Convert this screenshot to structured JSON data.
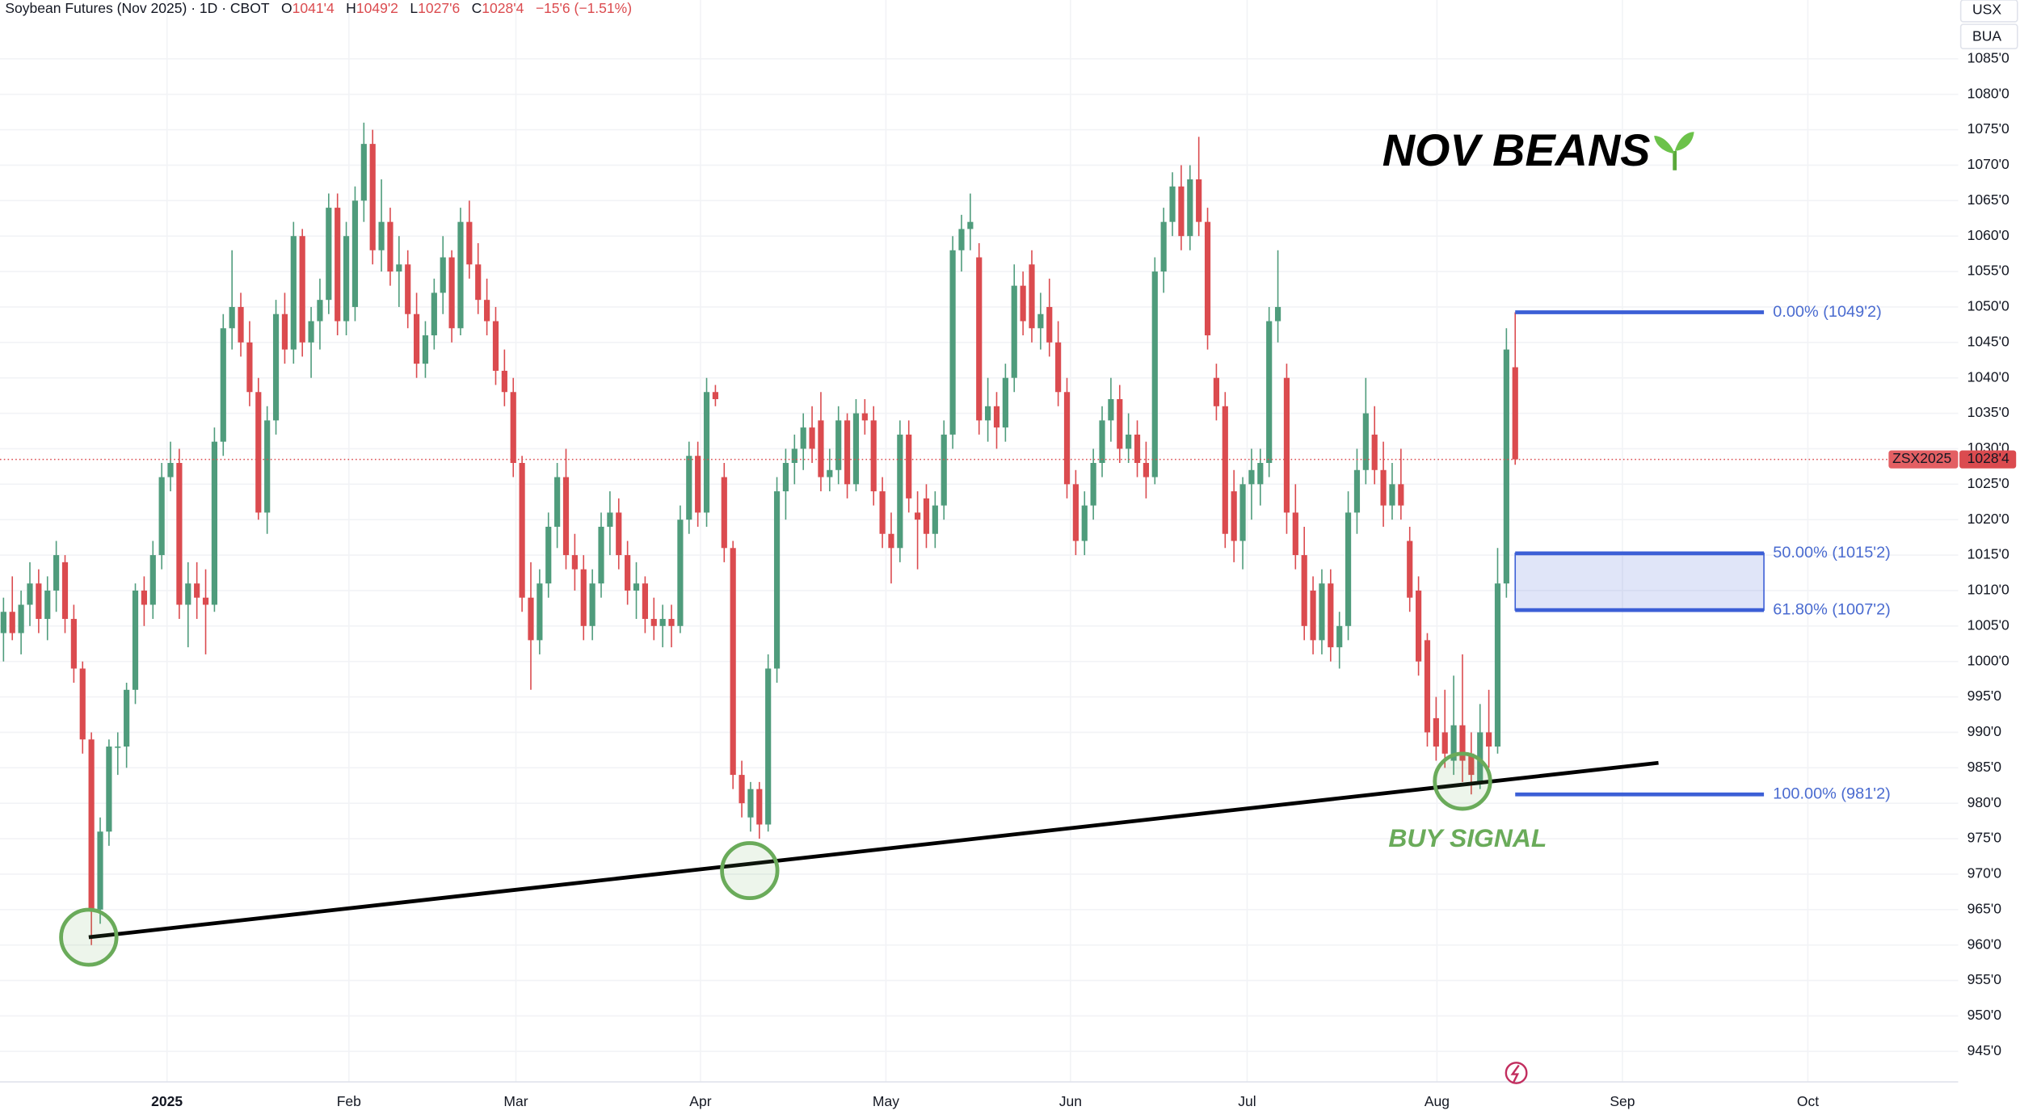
{
  "header": {
    "symbol": "Soybean Futures (Nov 2025) · 1D · CBOT",
    "ohlc": [
      {
        "key": "O",
        "value": "1041'4"
      },
      {
        "key": "H",
        "value": "1049'2"
      },
      {
        "key": "L",
        "value": "1027'6"
      },
      {
        "key": "C",
        "value": "1028'4"
      }
    ],
    "change": "−15'6 (−1.51%)"
  },
  "top_right": [
    "USX",
    "BUA"
  ],
  "chart_data": {
    "type": "candlestick",
    "title": "NOV BEANS",
    "annotation": "BUY SIGNAL",
    "up_color": "#4f9c7c",
    "down_color": "#db4b4f",
    "grid": true,
    "ohlc": [
      [
        1004,
        1009,
        1000,
        1007
      ],
      [
        1007,
        1012,
        1003,
        1004
      ],
      [
        1004,
        1010,
        1001,
        1008
      ],
      [
        1008,
        1014,
        1005,
        1011
      ],
      [
        1011,
        1013,
        1004,
        1006
      ],
      [
        1006,
        1012,
        1003,
        1010
      ],
      [
        1010,
        1017,
        1007,
        1015
      ],
      [
        1014,
        1015,
        1004,
        1006
      ],
      [
        1006,
        1008,
        997,
        999
      ],
      [
        999,
        1000,
        987,
        989
      ],
      [
        989,
        990,
        960,
        965
      ],
      [
        965,
        978,
        963,
        976
      ],
      [
        976,
        989,
        974,
        988
      ],
      [
        988,
        990,
        984,
        988
      ],
      [
        988,
        997,
        985,
        996
      ],
      [
        996,
        1011,
        994,
        1010
      ],
      [
        1010,
        1012,
        1005,
        1008
      ],
      [
        1008,
        1017,
        1006,
        1015
      ],
      [
        1015,
        1028,
        1013,
        1026
      ],
      [
        1026,
        1031,
        1024,
        1028
      ],
      [
        1028,
        1030,
        1006,
        1008
      ],
      [
        1008,
        1014,
        1002,
        1011
      ],
      [
        1011,
        1014,
        1006,
        1009
      ],
      [
        1009,
        1013,
        1001,
        1008
      ],
      [
        1008,
        1033,
        1007,
        1031
      ],
      [
        1031,
        1049,
        1029,
        1047
      ],
      [
        1047,
        1058,
        1044,
        1050
      ],
      [
        1050,
        1052,
        1043,
        1045
      ],
      [
        1045,
        1048,
        1036,
        1038
      ],
      [
        1038,
        1040,
        1020,
        1021
      ],
      [
        1021,
        1036,
        1018,
        1034
      ],
      [
        1034,
        1051,
        1032,
        1049
      ],
      [
        1049,
        1052,
        1042,
        1044
      ],
      [
        1044,
        1062,
        1042,
        1060
      ],
      [
        1060,
        1061,
        1043,
        1045
      ],
      [
        1045,
        1050,
        1040,
        1048
      ],
      [
        1048,
        1054,
        1044,
        1051
      ],
      [
        1051,
        1066,
        1049,
        1064
      ],
      [
        1064,
        1066,
        1046,
        1048
      ],
      [
        1048,
        1062,
        1046,
        1060
      ],
      [
        1050,
        1067,
        1048,
        1065
      ],
      [
        1065,
        1076,
        1062,
        1073
      ],
      [
        1073,
        1075,
        1056,
        1058
      ],
      [
        1058,
        1068,
        1055,
        1062
      ],
      [
        1062,
        1064,
        1053,
        1055
      ],
      [
        1055,
        1060,
        1050,
        1056
      ],
      [
        1056,
        1058,
        1047,
        1049
      ],
      [
        1049,
        1052,
        1040,
        1042
      ],
      [
        1042,
        1048,
        1040,
        1046
      ],
      [
        1046,
        1054,
        1044,
        1052
      ],
      [
        1052,
        1060,
        1049,
        1057
      ],
      [
        1057,
        1058,
        1045,
        1047
      ],
      [
        1047,
        1064,
        1046,
        1062
      ],
      [
        1062,
        1065,
        1054,
        1056
      ],
      [
        1056,
        1059,
        1049,
        1051
      ],
      [
        1051,
        1054,
        1046,
        1048
      ],
      [
        1048,
        1050,
        1039,
        1041
      ],
      [
        1041,
        1044,
        1036,
        1038
      ],
      [
        1038,
        1040,
        1026,
        1028
      ],
      [
        1028,
        1029,
        1007,
        1009
      ],
      [
        1009,
        1014,
        996,
        1003
      ],
      [
        1003,
        1013,
        1001,
        1011
      ],
      [
        1011,
        1021,
        1009,
        1019
      ],
      [
        1019,
        1028,
        1016,
        1026
      ],
      [
        1026,
        1030,
        1013,
        1015
      ],
      [
        1015,
        1018,
        1010,
        1013
      ],
      [
        1013,
        1015,
        1003,
        1005
      ],
      [
        1005,
        1013,
        1003,
        1011
      ],
      [
        1011,
        1021,
        1009,
        1019
      ],
      [
        1019,
        1024,
        1015,
        1021
      ],
      [
        1021,
        1023,
        1013,
        1015
      ],
      [
        1015,
        1017,
        1008,
        1010
      ],
      [
        1010,
        1014,
        1006,
        1011
      ],
      [
        1011,
        1012,
        1004,
        1006
      ],
      [
        1006,
        1009,
        1003,
        1005
      ],
      [
        1005,
        1008,
        1002,
        1006
      ],
      [
        1006,
        1008,
        1002,
        1005
      ],
      [
        1005,
        1022,
        1004,
        1020
      ],
      [
        1020,
        1031,
        1018,
        1029
      ],
      [
        1029,
        1031,
        1019,
        1021
      ],
      [
        1021,
        1040,
        1019,
        1038
      ],
      [
        1038,
        1039,
        1036,
        1037
      ],
      [
        1026,
        1028,
        1014,
        1016
      ],
      [
        1016,
        1017,
        982,
        984
      ],
      [
        984,
        986,
        978,
        980
      ],
      [
        978,
        983,
        976,
        982
      ],
      [
        982,
        983,
        975,
        977
      ],
      [
        977,
        1001,
        976,
        999
      ],
      [
        999,
        1026,
        997,
        1024
      ],
      [
        1024,
        1030,
        1020,
        1028
      ],
      [
        1028,
        1032,
        1025,
        1030
      ],
      [
        1030,
        1035,
        1027,
        1033
      ],
      [
        1033,
        1036,
        1028,
        1030
      ],
      [
        1034,
        1038,
        1024,
        1026
      ],
      [
        1026,
        1030,
        1024,
        1027
      ],
      [
        1027,
        1036,
        1025,
        1034
      ],
      [
        1034,
        1035,
        1023,
        1025
      ],
      [
        1025,
        1037,
        1024,
        1035
      ],
      [
        1035,
        1037,
        1032,
        1034
      ],
      [
        1034,
        1036,
        1022,
        1024
      ],
      [
        1024,
        1026,
        1016,
        1018
      ],
      [
        1018,
        1021,
        1011,
        1016
      ],
      [
        1016,
        1034,
        1014,
        1032
      ],
      [
        1032,
        1034,
        1021,
        1023
      ],
      [
        1021,
        1024,
        1013,
        1020
      ],
      [
        1023,
        1025,
        1016,
        1018
      ],
      [
        1018,
        1024,
        1016,
        1022
      ],
      [
        1022,
        1034,
        1020,
        1032
      ],
      [
        1032,
        1060,
        1030,
        1058
      ],
      [
        1058,
        1063,
        1055,
        1061
      ],
      [
        1061,
        1066,
        1058,
        1062
      ],
      [
        1057,
        1059,
        1032,
        1034
      ],
      [
        1034,
        1040,
        1031,
        1036
      ],
      [
        1036,
        1038,
        1030,
        1033
      ],
      [
        1033,
        1042,
        1031,
        1040
      ],
      [
        1040,
        1056,
        1038,
        1053
      ],
      [
        1053,
        1055,
        1046,
        1048
      ],
      [
        1056,
        1058,
        1045,
        1047
      ],
      [
        1047,
        1052,
        1044,
        1049
      ],
      [
        1050,
        1054,
        1043,
        1045
      ],
      [
        1045,
        1048,
        1036,
        1038
      ],
      [
        1038,
        1040,
        1023,
        1025
      ],
      [
        1025,
        1027,
        1015,
        1017
      ],
      [
        1017,
        1024,
        1015,
        1022
      ],
      [
        1022,
        1030,
        1020,
        1028
      ],
      [
        1028,
        1036,
        1026,
        1034
      ],
      [
        1034,
        1040,
        1031,
        1037
      ],
      [
        1037,
        1039,
        1028,
        1030
      ],
      [
        1030,
        1035,
        1028,
        1032
      ],
      [
        1032,
        1034,
        1026,
        1028
      ],
      [
        1028,
        1031,
        1023,
        1026
      ],
      [
        1026,
        1057,
        1025,
        1055
      ],
      [
        1055,
        1064,
        1052,
        1062
      ],
      [
        1062,
        1069,
        1060,
        1067
      ],
      [
        1067,
        1070,
        1058,
        1060
      ],
      [
        1060,
        1070,
        1058,
        1068
      ],
      [
        1068,
        1074,
        1060,
        1062
      ],
      [
        1062,
        1064,
        1044,
        1046
      ],
      [
        1040,
        1042,
        1034,
        1036
      ],
      [
        1036,
        1038,
        1016,
        1018
      ],
      [
        1024,
        1027,
        1014,
        1017
      ],
      [
        1017,
        1026,
        1013,
        1025
      ],
      [
        1025,
        1030,
        1020,
        1027
      ],
      [
        1025,
        1030,
        1022,
        1028
      ],
      [
        1028,
        1050,
        1026,
        1048
      ],
      [
        1048,
        1058,
        1045,
        1050
      ],
      [
        1040,
        1042,
        1018,
        1021
      ],
      [
        1021,
        1025,
        1013,
        1015
      ],
      [
        1015,
        1019,
        1003,
        1005
      ],
      [
        1010,
        1012,
        1001,
        1003
      ],
      [
        1003,
        1013,
        1001,
        1011
      ],
      [
        1011,
        1013,
        1000,
        1002
      ],
      [
        1002,
        1007,
        999,
        1005
      ],
      [
        1005,
        1024,
        1003,
        1021
      ],
      [
        1021,
        1030,
        1018,
        1027
      ],
      [
        1027,
        1040,
        1025,
        1035
      ],
      [
        1032,
        1036,
        1025,
        1027
      ],
      [
        1027,
        1031,
        1019,
        1022
      ],
      [
        1022,
        1028,
        1020,
        1025
      ],
      [
        1025,
        1030,
        1020,
        1022
      ],
      [
        1017,
        1019,
        1007,
        1009
      ],
      [
        1010,
        1012,
        998,
        1000
      ],
      [
        1003,
        1004,
        988,
        990
      ],
      [
        992,
        995,
        986,
        988
      ],
      [
        990,
        996,
        985,
        987
      ],
      [
        986,
        998,
        984,
        991
      ],
      [
        991,
        1001,
        983,
        986
      ],
      [
        987,
        990,
        981.25,
        984
      ],
      [
        983,
        994,
        982,
        990
      ],
      [
        990,
        996,
        985,
        988
      ],
      [
        988,
        1016,
        987,
        1011
      ],
      [
        1011,
        1047,
        1009,
        1044
      ],
      [
        1041.5,
        1049.25,
        1027.75,
        1028.5
      ]
    ],
    "xlim": [
      -0.4,
      222.4
    ],
    "xticks": [
      {
        "value": 18.6,
        "label": "2025"
      },
      {
        "value": 39.3,
        "label": "Feb"
      },
      {
        "value": 58.3,
        "label": "Mar"
      },
      {
        "value": 79.3,
        "label": "Apr"
      },
      {
        "value": 100.4,
        "label": "May"
      },
      {
        "value": 121.4,
        "label": "Jun"
      },
      {
        "value": 141.5,
        "label": "Jul"
      },
      {
        "value": 163.1,
        "label": "Aug"
      },
      {
        "value": 184.2,
        "label": "Sep"
      },
      {
        "value": 205.3,
        "label": "Oct"
      }
    ],
    "ylim": [
      940.7,
      1093.3
    ],
    "yticks": [
      {
        "value": 945,
        "label": "945'0"
      },
      {
        "value": 950,
        "label": "950'0"
      },
      {
        "value": 955,
        "label": "955'0"
      },
      {
        "value": 960,
        "label": "960'0"
      },
      {
        "value": 965,
        "label": "965'0"
      },
      {
        "value": 970,
        "label": "970'0"
      },
      {
        "value": 975,
        "label": "975'0"
      },
      {
        "value": 980,
        "label": "980'0"
      },
      {
        "value": 985,
        "label": "985'0"
      },
      {
        "value": 990,
        "label": "990'0"
      },
      {
        "value": 995,
        "label": "995'0"
      },
      {
        "value": 1000,
        "label": "1000'0"
      },
      {
        "value": 1005,
        "label": "1005'0"
      },
      {
        "value": 1010,
        "label": "1010'0"
      },
      {
        "value": 1015,
        "label": "1015'0"
      },
      {
        "value": 1020,
        "label": "1020'0"
      },
      {
        "value": 1025,
        "label": "1025'0"
      },
      {
        "value": 1030,
        "label": "1030'0"
      },
      {
        "value": 1035,
        "label": "1035'0"
      },
      {
        "value": 1040,
        "label": "1040'0"
      },
      {
        "value": 1045,
        "label": "1045'0"
      },
      {
        "value": 1050,
        "label": "1050'0"
      },
      {
        "value": 1055,
        "label": "1055'0"
      },
      {
        "value": 1060,
        "label": "1060'0"
      },
      {
        "value": 1065,
        "label": "1065'0"
      },
      {
        "value": 1070,
        "label": "1070'0"
      },
      {
        "value": 1075,
        "label": "1075'0"
      },
      {
        "value": 1080,
        "label": "1080'0"
      },
      {
        "value": 1085,
        "label": "1085'0"
      }
    ],
    "last_price": {
      "symbol": "ZSX2025",
      "label": "1028'4",
      "value": 1028.5
    },
    "fib_levels": [
      {
        "label": "0.00% (1049'2)",
        "value": 1049.25
      },
      {
        "label": "50.00% (1015'2)",
        "value": 1015.25
      },
      {
        "label": "61.80% (1007'2)",
        "value": 1007.25
      },
      {
        "label": "100.00% (981'2)",
        "value": 981.25
      }
    ],
    "trendline": {
      "x": [
        9.7,
        188.3
      ],
      "y": [
        961.1,
        985.7
      ]
    },
    "signal_points": {
      "x": [
        9.7,
        84.9,
        166
      ],
      "y": [
        961.1,
        970.5,
        983.1
      ]
    }
  }
}
